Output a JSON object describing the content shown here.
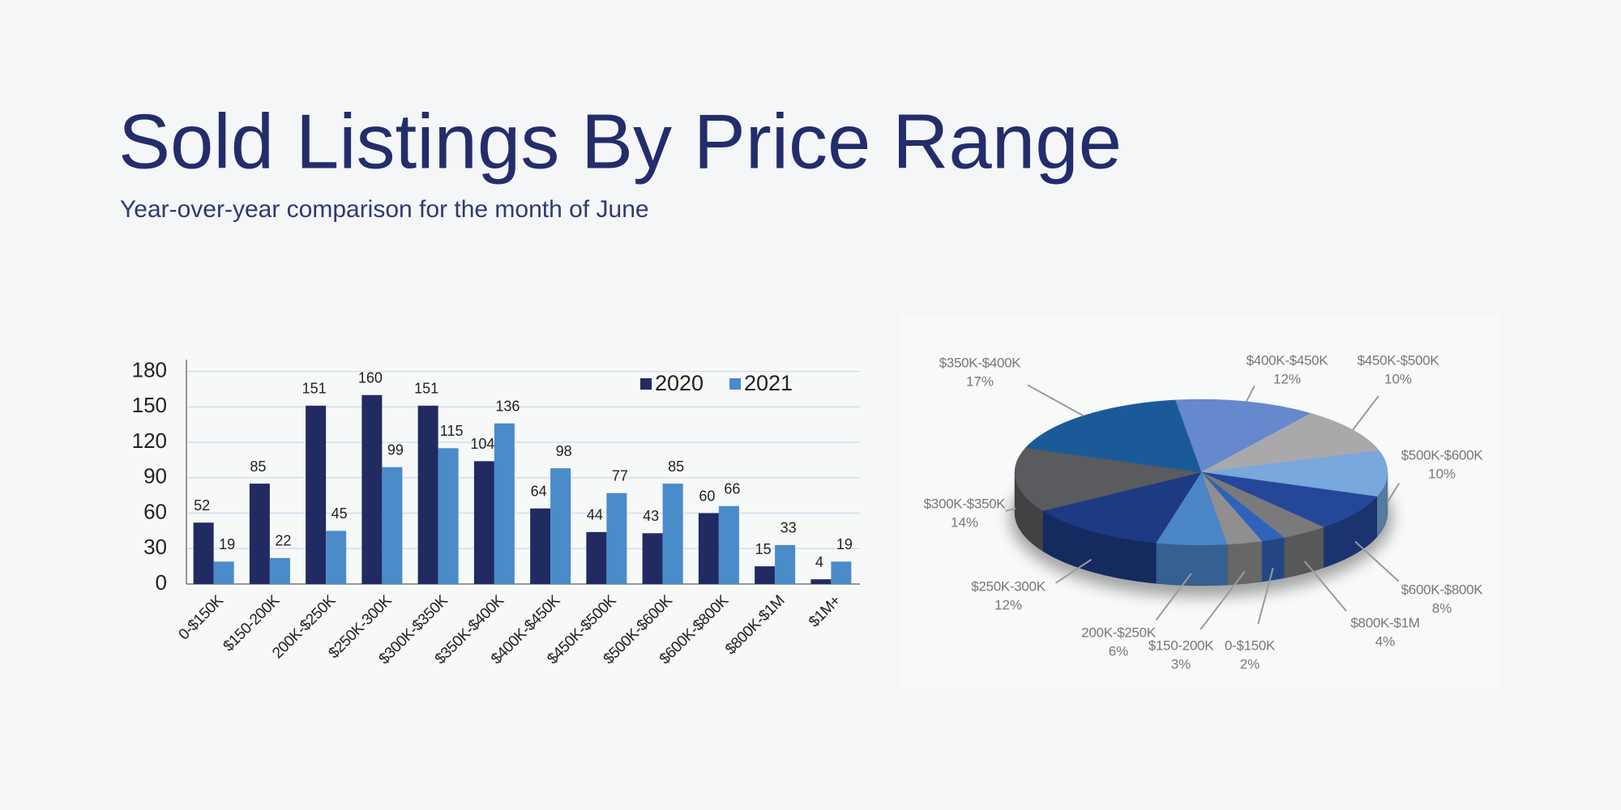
{
  "header": {
    "title": "Sold Listings By Price Range",
    "subtitle": "Year-over-year comparison for the month of June"
  },
  "chart_data": [
    {
      "type": "bar",
      "categories": [
        "0-$150K",
        "$150-200K",
        "200K-$250K",
        "$250K-300K",
        "$300K-$350K",
        "$350K-$400K",
        "$400K-$450K",
        "$450K-$500K",
        "$500K-$600K",
        "$600K-$800K",
        "$800K-$1M",
        "$1M+"
      ],
      "series": [
        {
          "name": "2020",
          "color": "#222a62",
          "values": [
            52,
            85,
            151,
            160,
            151,
            104,
            64,
            44,
            43,
            60,
            15,
            4
          ]
        },
        {
          "name": "2021",
          "color": "#4a8bca",
          "values": [
            19,
            22,
            45,
            99,
            115,
            136,
            98,
            77,
            85,
            66,
            33,
            19
          ]
        }
      ],
      "ylim": [
        0,
        190
      ],
      "yticks": [
        0,
        30,
        60,
        90,
        120,
        150,
        180
      ],
      "grid": true,
      "legend": "upper right"
    },
    {
      "type": "pie",
      "categories": [
        "$400K-$450K",
        "$450K-$500K",
        "$500K-$600K",
        "$600K-$800K",
        "$800K-$1M",
        "0-$150K",
        "$150-200K",
        "200K-$250K",
        "$250K-300K",
        "$300K-$350K",
        "$350K-$400K"
      ],
      "values": [
        12,
        10,
        10,
        8,
        4,
        2,
        3,
        6,
        12,
        14,
        17
      ],
      "value_labels": [
        "12%",
        "10%",
        "10%",
        "8%",
        "4%",
        "2%",
        "3%",
        "6%",
        "12%",
        "14%",
        "17%"
      ],
      "colors": [
        "#6688cc",
        "#a9a9ab",
        "#78a8dc",
        "#25479a",
        "#7a7a7c",
        "#2f62b8",
        "#8f8f91",
        "#4a86c6",
        "#1d3a82",
        "#5a5b5e",
        "#1b5a98"
      ]
    }
  ]
}
